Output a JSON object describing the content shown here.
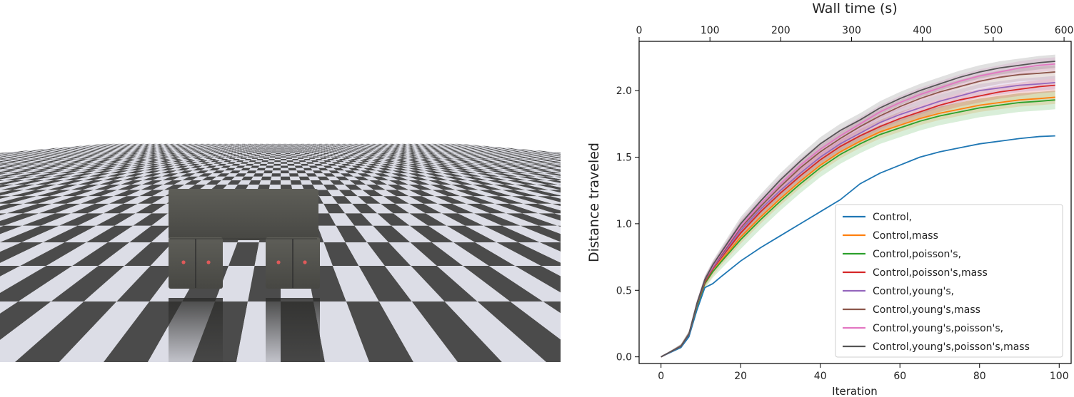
{
  "scene": {
    "floor_light": "#dcdde6",
    "floor_dark": "#4b4b4b",
    "robot_body": "#565650",
    "marker_color": "#e05a5a"
  },
  "chart_data": {
    "type": "line",
    "xlabel": "Iteration",
    "ylabel": "Distance traveled",
    "top_xlabel": "Wall time (s)",
    "xlim": [
      -5.5,
      103
    ],
    "ylim": [
      -0.05,
      2.37
    ],
    "top_xlim": [
      0,
      610
    ],
    "xticks": [
      0,
      20,
      40,
      60,
      80,
      100
    ],
    "yticks": [
      0.0,
      0.5,
      1.0,
      1.5,
      2.0
    ],
    "top_xticks": [
      0,
      100,
      200,
      300,
      400,
      500,
      600
    ],
    "xtick_labels": [
      "0",
      "20",
      "40",
      "60",
      "80",
      "100"
    ],
    "ytick_labels": [
      "0.0",
      "0.5",
      "1.0",
      "1.5",
      "2.0"
    ],
    "top_xtick_labels": [
      "0",
      "100",
      "200",
      "300",
      "400",
      "500",
      "600"
    ],
    "grid": false,
    "legend_position": "lower-right",
    "x": [
      0,
      5,
      7,
      9,
      11,
      13,
      15,
      20,
      25,
      30,
      35,
      40,
      45,
      50,
      55,
      60,
      65,
      70,
      75,
      80,
      85,
      90,
      95,
      99
    ],
    "series": [
      {
        "name": "Control,",
        "color": "#1f77b4",
        "band": 0,
        "values": [
          0.0,
          0.07,
          0.15,
          0.35,
          0.52,
          0.55,
          0.6,
          0.72,
          0.82,
          0.91,
          1.0,
          1.09,
          1.18,
          1.3,
          1.38,
          1.44,
          1.5,
          1.54,
          1.57,
          1.6,
          1.62,
          1.64,
          1.655,
          1.66
        ]
      },
      {
        "name": "Control,mass",
        "color": "#ff7f0e",
        "band": 0.05,
        "values": [
          0.0,
          0.08,
          0.17,
          0.38,
          0.55,
          0.64,
          0.72,
          0.9,
          1.05,
          1.19,
          1.32,
          1.44,
          1.54,
          1.62,
          1.69,
          1.74,
          1.79,
          1.83,
          1.86,
          1.89,
          1.91,
          1.93,
          1.94,
          1.95
        ]
      },
      {
        "name": "Control,poisson's,",
        "color": "#2ca02c",
        "band": 0.07,
        "values": [
          0.0,
          0.08,
          0.17,
          0.38,
          0.55,
          0.64,
          0.71,
          0.88,
          1.03,
          1.17,
          1.3,
          1.42,
          1.52,
          1.6,
          1.67,
          1.72,
          1.77,
          1.81,
          1.84,
          1.87,
          1.89,
          1.91,
          1.92,
          1.93
        ]
      },
      {
        "name": "Control,poisson's,mass",
        "color": "#d62728",
        "band": 0.05,
        "values": [
          0.0,
          0.08,
          0.17,
          0.39,
          0.56,
          0.66,
          0.74,
          0.93,
          1.09,
          1.23,
          1.36,
          1.48,
          1.58,
          1.66,
          1.73,
          1.79,
          1.84,
          1.89,
          1.93,
          1.96,
          1.99,
          2.01,
          2.03,
          2.04
        ]
      },
      {
        "name": "Control,young's,",
        "color": "#9467bd",
        "band": 0.05,
        "values": [
          0.0,
          0.08,
          0.17,
          0.39,
          0.57,
          0.67,
          0.75,
          0.95,
          1.11,
          1.25,
          1.38,
          1.5,
          1.6,
          1.68,
          1.76,
          1.82,
          1.87,
          1.92,
          1.96,
          2.0,
          2.02,
          2.04,
          2.05,
          2.06
        ]
      },
      {
        "name": "Control,young's,mass",
        "color": "#8c564b",
        "band": 0.05,
        "values": [
          0.0,
          0.08,
          0.17,
          0.39,
          0.57,
          0.68,
          0.76,
          0.97,
          1.13,
          1.28,
          1.42,
          1.54,
          1.64,
          1.73,
          1.81,
          1.88,
          1.94,
          1.99,
          2.03,
          2.07,
          2.1,
          2.12,
          2.13,
          2.14
        ]
      },
      {
        "name": "Control,young's,poisson's,",
        "color": "#e377c2",
        "band": 0.05,
        "values": [
          0.0,
          0.08,
          0.17,
          0.4,
          0.58,
          0.68,
          0.77,
          0.98,
          1.15,
          1.3,
          1.44,
          1.56,
          1.66,
          1.75,
          1.84,
          1.91,
          1.97,
          2.02,
          2.07,
          2.11,
          2.14,
          2.17,
          2.19,
          2.2
        ]
      },
      {
        "name": "Control,young's,poisson's,mass",
        "color": "#555555",
        "band": 0.05,
        "values": [
          0.0,
          0.08,
          0.17,
          0.4,
          0.58,
          0.69,
          0.78,
          1.0,
          1.17,
          1.33,
          1.47,
          1.6,
          1.7,
          1.78,
          1.87,
          1.94,
          2.0,
          2.05,
          2.1,
          2.14,
          2.17,
          2.19,
          2.21,
          2.22
        ]
      }
    ]
  }
}
